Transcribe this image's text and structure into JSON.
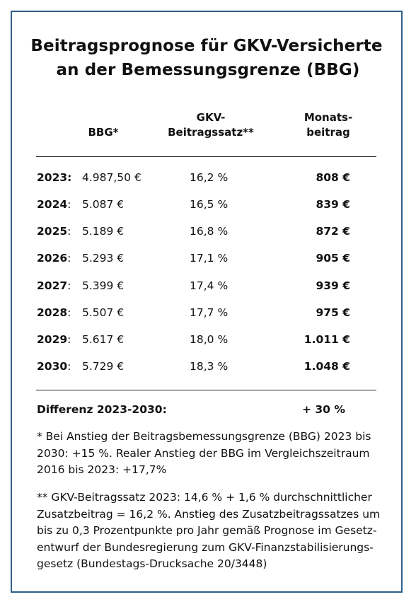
{
  "title": {
    "line1": "Beitragsprognose für GKV-Versicherte",
    "line2": "an der Bemessungsgrenze (BBG)"
  },
  "columns": {
    "bbg": "BBG*",
    "rate_line1": "GKV-",
    "rate_line2": "Beitragssatz**",
    "monthly_line1": "Monats-",
    "monthly_line2": "beitrag"
  },
  "rows": [
    {
      "year": "2023",
      "punct": ":",
      "bbg": "4.987,50 €",
      "rate": "16,2 %",
      "monthly": "808 €"
    },
    {
      "year": "2024",
      "punct": ":",
      "bbg": "5.087 €",
      "rate": "16,5 %",
      "monthly": "839 €"
    },
    {
      "year": "2025",
      "punct": ":",
      "bbg": "5.189 €",
      "rate": "16,8 %",
      "monthly": "872 €"
    },
    {
      "year": "2026",
      "punct": ":",
      "bbg": "5.293 €",
      "rate": "17,1 %",
      "monthly": "905 €"
    },
    {
      "year": "2027",
      "punct": ":",
      "bbg": "5.399 €",
      "rate": "17,4 %",
      "monthly": "939 €"
    },
    {
      "year": "2028",
      "punct": ":",
      "bbg": "5.507 €",
      "rate": "17,7 %",
      "monthly": "975 €"
    },
    {
      "year": "2029",
      "punct": ":",
      "bbg": "5.617 €",
      "rate": "18,0 %",
      "monthly": "1.011 €"
    },
    {
      "year": "2030",
      "punct": ":",
      "bbg": "5.729 €",
      "rate": "18,3 %",
      "monthly": "1.048 €"
    }
  ],
  "difference": {
    "label": "Differenz 2023-2030:",
    "value": "+ 30 %"
  },
  "notes": {
    "note1": "* Bei Anstieg der Beitragsbemessungsgrenze (BBG) 2023 bis 2030: +15 %. Realer Anstieg der BBG im Vergleichszeitraum 2016 bis 2023: +17,7%",
    "note2": "** GKV-Beitragssatz 2023: 14,6 % + 1,6 % durchschnittlicher Zusatzbeitrag = 16,2 %. Anstieg des Zusatzbeitragssatzes um bis zu 0,3 Prozentpunkte pro Jahr gemäß Prognose im Gesetz-entwurf der Bundesregierung zum GKV-Finanzstabilisierungs-gesetz (Bundestags-Drucksache 20/3448)"
  }
}
